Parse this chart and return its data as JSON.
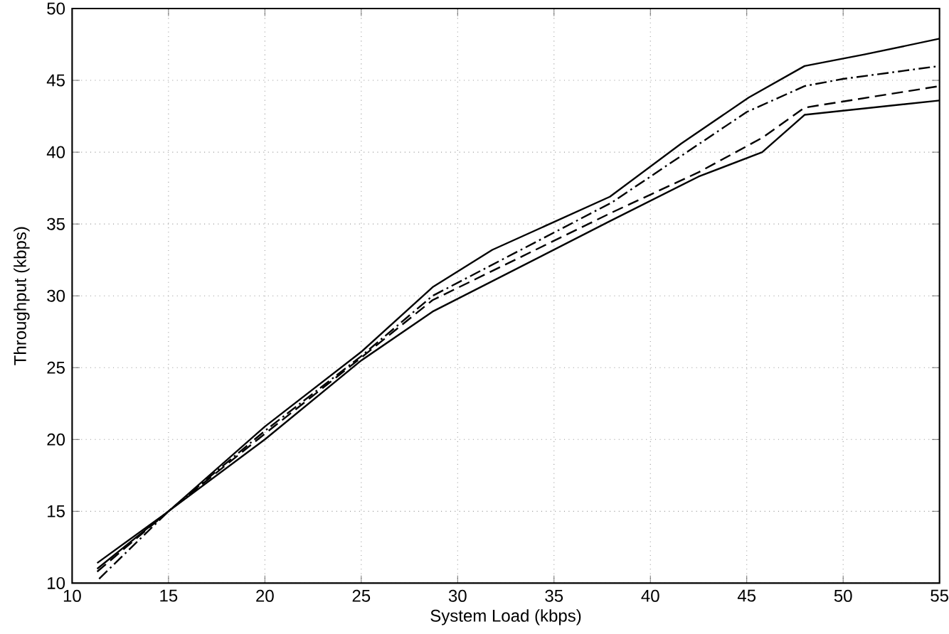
{
  "chart_data": {
    "type": "line",
    "xlabel": "System Load (kbps)",
    "ylabel": "Throughput (kbps)",
    "xlim": [
      10,
      55
    ],
    "ylim": [
      10,
      50
    ],
    "xticks": [
      10,
      15,
      20,
      25,
      30,
      35,
      40,
      45,
      50,
      55
    ],
    "yticks": [
      10,
      15,
      20,
      25,
      30,
      35,
      40,
      45,
      50
    ],
    "grid": true,
    "marker": "none",
    "series": [
      {
        "color": "#000000",
        "line_style": "solid",
        "x": [
          11.3,
          15,
          20,
          25,
          28.7,
          31.8,
          37.9,
          41.6,
          45.1,
          48,
          51.1,
          55
        ],
        "values": [
          11.4,
          15,
          20.9,
          26.1,
          30.6,
          33.2,
          36.9,
          40.6,
          43.8,
          46,
          46.8,
          47.9
        ]
      },
      {
        "color": "#000000",
        "line_style": "dashdot",
        "x": [
          11.4,
          15,
          20,
          25,
          28.7,
          38,
          45,
          48,
          50,
          55
        ],
        "values": [
          10.3,
          15,
          20.6,
          25.8,
          30,
          36.5,
          42.8,
          44.6,
          45.1,
          46
        ]
      },
      {
        "color": "#000000",
        "line_style": "dashed",
        "x": [
          11.3,
          15,
          20,
          25,
          28.7,
          38,
          42.5,
          45.8,
          48,
          55
        ],
        "values": [
          10.8,
          15,
          20.4,
          25.7,
          29.7,
          35.8,
          38.6,
          41,
          43.1,
          44.6
        ]
      },
      {
        "color": "#000000",
        "line_style": "solid",
        "x": [
          11.3,
          15,
          20,
          25,
          28.7,
          37.9,
          42.5,
          45.8,
          48,
          55
        ],
        "values": [
          11,
          15,
          20,
          25.5,
          28.9,
          35.2,
          38.3,
          40,
          42.6,
          43.6
        ]
      }
    ]
  }
}
